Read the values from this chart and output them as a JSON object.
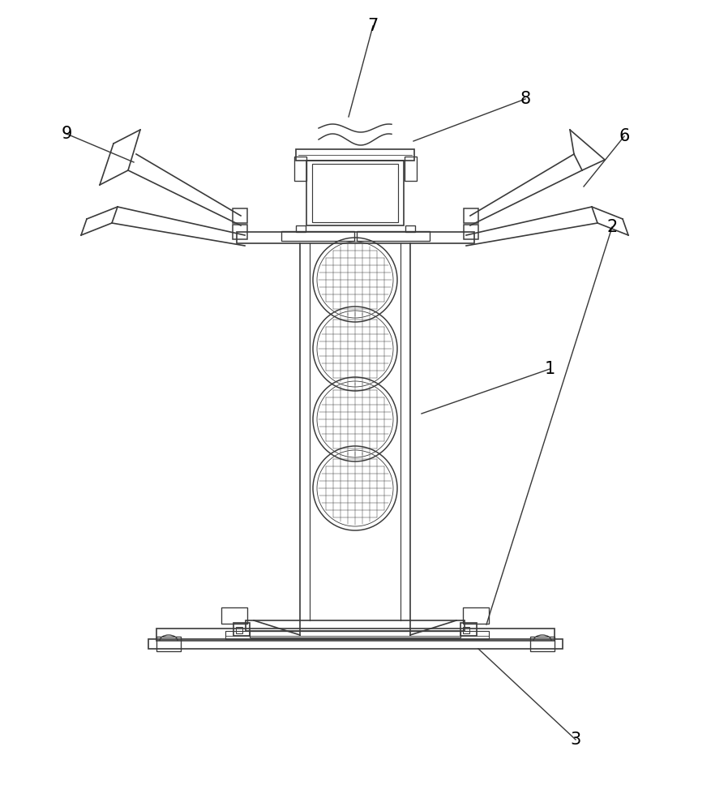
{
  "bg_color": "#ffffff",
  "line_color": "#3a3a3a",
  "line_width": 1.2,
  "label_fontsize": 15
}
